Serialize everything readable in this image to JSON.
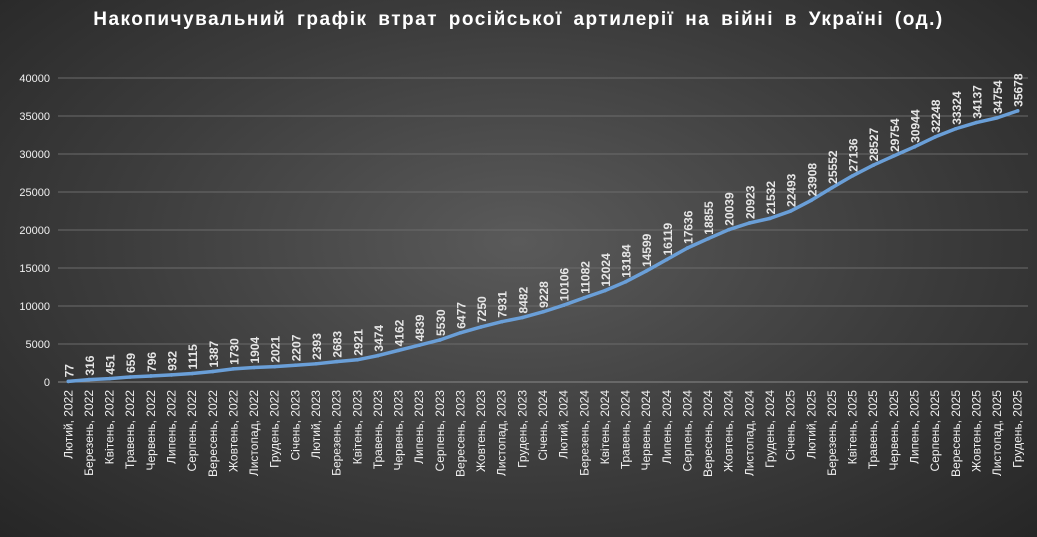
{
  "chart_data": {
    "type": "line",
    "title": "Накопичувальний  графік  втрат  російської  артилерії  на  війні  в  Україні  (од.)",
    "xlabel": "",
    "ylabel": "",
    "ylim": [
      0,
      40000
    ],
    "yticks": [
      0,
      5000,
      10000,
      15000,
      20000,
      25000,
      30000,
      35000,
      40000
    ],
    "grid": "horizontal",
    "legend": "none",
    "line_color": "#6a9fd8",
    "categories": [
      "Лютий, 2022",
      "Березень, 2022",
      "Квітень, 2022",
      "Травень, 2022",
      "Червень, 2022",
      "Липень, 2022",
      "Серпень, 2022",
      "Вересень, 2022",
      "Жовтень, 2022",
      "Листопад, 2022",
      "Грудень, 2022",
      "Січень, 2023",
      "Лютий, 2023",
      "Березень, 2023",
      "Квітень, 2023",
      "Травень, 2023",
      "Червень, 2023",
      "Липень, 2023",
      "Серпень, 2023",
      "Вересень, 2023",
      "Жовтень, 2023",
      "Листопад, 2023",
      "Грудень, 2023",
      "Січень, 2024",
      "Лютий, 2024",
      "Березень, 2024",
      "Квітень, 2024",
      "Травень, 2024",
      "Червень, 2024",
      "Липень, 2024",
      "Серпень, 2024",
      "Вересень, 2024",
      "Жовтень, 2024",
      "Листопад, 2024",
      "Грудень, 2024",
      "Січень, 2025",
      "Лютий, 2025",
      "Березень, 2025",
      "Квітень, 2025",
      "Травень, 2025",
      "Червень, 2025",
      "Липень, 2025",
      "Серпень, 2025",
      "Вересень, 2025",
      "Жовтень, 2025",
      "Листопад, 2025",
      "Грудень, 2025"
    ],
    "series": [
      {
        "values": [
          77,
          316,
          451,
          659,
          796,
          932,
          1115,
          1387,
          1730,
          1904,
          2021,
          2207,
          2393,
          2683,
          2921,
          3474,
          4162,
          4839,
          5530,
          6477,
          7250,
          7931,
          8482,
          9228,
          10106,
          11082,
          12024,
          13184,
          14599,
          16119,
          17636,
          18855,
          20039,
          20923,
          21532,
          22493,
          23908,
          25552,
          27136,
          28527,
          29754,
          30944,
          32248,
          33324,
          34137,
          34754,
          35678
        ]
      }
    ]
  }
}
